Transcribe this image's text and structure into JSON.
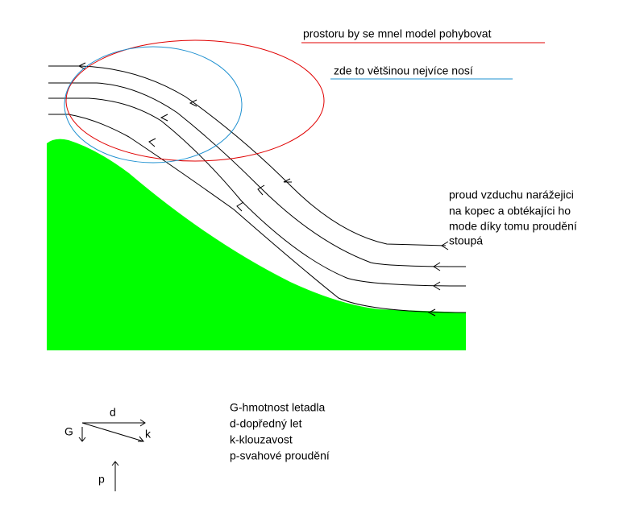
{
  "notes": {
    "model_space": "prostoru by se mnel model pohybovat",
    "best_lift": "zde to většinou nejvíce nosí",
    "airflow": [
      "proud vzduchu narážejici",
      "na kopec a obtékajíci ho",
      "mode díky tomu proudění",
      "stoupá"
    ]
  },
  "legend": [
    "G-hmotnost letadla",
    "d-dopředný let",
    "k-klouzavost",
    "p-svahové proudění"
  ],
  "vectors": {
    "G": "G",
    "d": "d",
    "k": "k",
    "p": "p"
  }
}
